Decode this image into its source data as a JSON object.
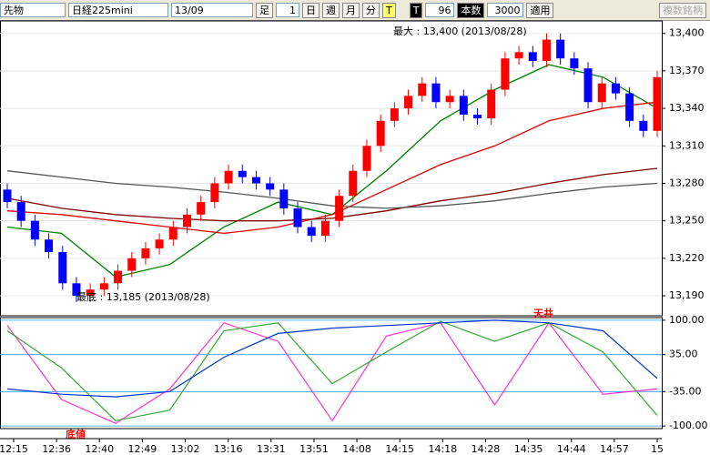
{
  "toolbar": {
    "market": "先物",
    "symbol": "日経225mini",
    "contract": "13/09",
    "bar_label": "足",
    "bar_value": 1,
    "periods": [
      "日",
      "週",
      "月",
      "分"
    ],
    "tick": "T",
    "t_label": "T",
    "count": 96,
    "count_label": "本数",
    "bars": 3000,
    "apply": "適用",
    "multi": "複数銘柄"
  },
  "chart_data": [
    {
      "type": "candlestick",
      "up_color": "#ff0000",
      "down_color": "#0000ff",
      "open": [
        13275,
        13265,
        13250,
        13235,
        13225,
        13200,
        13190,
        13195,
        13200,
        13210,
        13220,
        13228,
        13235,
        13245,
        13255,
        13265,
        13280,
        13290,
        13285,
        13280,
        13275,
        13260,
        13245,
        13238,
        13250,
        13270,
        13290,
        13310,
        13330,
        13340,
        13350,
        13360,
        13345,
        13350,
        13335,
        13332,
        13355,
        13380,
        13385,
        13378,
        13395,
        13380,
        13372,
        13345,
        13360,
        13352,
        13330,
        13322
      ],
      "high": [
        13280,
        13270,
        13255,
        13240,
        13230,
        13205,
        13200,
        13205,
        13215,
        13225,
        13233,
        13240,
        13250,
        13260,
        13270,
        13285,
        13295,
        13295,
        13290,
        13285,
        13280,
        13265,
        13250,
        13255,
        13275,
        13295,
        13315,
        13335,
        13345,
        13355,
        13365,
        13365,
        13355,
        13355,
        13340,
        13360,
        13385,
        13390,
        13390,
        13400,
        13400,
        13385,
        13377,
        13365,
        13365,
        13357,
        13335,
        13370
      ],
      "low": [
        13260,
        13245,
        13230,
        13220,
        13195,
        13185,
        13185,
        13190,
        13195,
        13205,
        13215,
        13223,
        13230,
        13240,
        13250,
        13260,
        13275,
        13280,
        13275,
        13270,
        13255,
        13240,
        13233,
        13233,
        13245,
        13265,
        13285,
        13305,
        13325,
        13335,
        13345,
        13340,
        13340,
        13330,
        13327,
        13327,
        13350,
        13375,
        13373,
        13373,
        13375,
        13367,
        13340,
        13340,
        13347,
        13325,
        13317,
        13317
      ],
      "close": [
        13265,
        13250,
        13235,
        13225,
        13200,
        13190,
        13195,
        13200,
        13210,
        13220,
        13228,
        13235,
        13245,
        13255,
        13265,
        13280,
        13290,
        13285,
        13280,
        13275,
        13260,
        13245,
        13238,
        13250,
        13270,
        13290,
        13310,
        13330,
        13340,
        13350,
        13360,
        13345,
        13350,
        13335,
        13332,
        13355,
        13380,
        13385,
        13378,
        13395,
        13380,
        13372,
        13345,
        13360,
        13352,
        13330,
        13322,
        13365
      ],
      "series": [
        {
          "color": "#008000",
          "values": [
            13245,
            13240,
            13205,
            13215,
            13245,
            13265,
            13255,
            13290,
            13330,
            13355,
            13375,
            13365,
            13340
          ]
        },
        {
          "color": "#e00000",
          "values": [
            13258,
            13255,
            13250,
            13245,
            13240,
            13245,
            13255,
            13275,
            13295,
            13310,
            13330,
            13340,
            13345
          ]
        },
        {
          "color": "#800000",
          "values": [
            13268,
            13260,
            13255,
            13252,
            13250,
            13250,
            13252,
            13258,
            13266,
            13272,
            13280,
            13287,
            13292
          ]
        },
        {
          "color": "#555555",
          "values": [
            13290,
            13285,
            13280,
            13277,
            13273,
            13268,
            13262,
            13260,
            13262,
            13266,
            13272,
            13277,
            13280
          ]
        }
      ],
      "ylim": [
        13174,
        13410
      ],
      "yticks": [
        {
          "value": 13190,
          "label": "13,190"
        },
        {
          "value": 13220,
          "label": "13,220"
        },
        {
          "value": 13250,
          "label": "13,250"
        },
        {
          "value": 13280,
          "label": "13,280"
        },
        {
          "value": 13310,
          "label": "13,310"
        },
        {
          "value": 13340,
          "label": "13,340"
        },
        {
          "value": 13370,
          "label": "13,370"
        },
        {
          "value": 13400,
          "label": "13,400"
        }
      ],
      "annotations": [
        "最大 : 13,400 (2013/08/28)",
        "最底 : 13,185 (2013/08/28)"
      ]
    },
    {
      "type": "line",
      "series": [
        {
          "color": "#ff33cc",
          "values": [
            90,
            -50,
            -95,
            -30,
            95,
            60,
            -90,
            70,
            95,
            -60,
            95,
            -40,
            -30
          ]
        },
        {
          "color": "#33aa33",
          "values": [
            80,
            10,
            -90,
            -70,
            80,
            95,
            -20,
            40,
            98,
            60,
            95,
            40,
            -80
          ]
        },
        {
          "color": "#0033cc",
          "values": [
            -30,
            -40,
            -45,
            -35,
            30,
            75,
            85,
            90,
            95,
            100,
            95,
            80,
            -10
          ]
        }
      ],
      "ylim": [
        -105,
        105
      ],
      "yticks": [
        {
          "value": 100,
          "label": "100.00"
        },
        {
          "value": 35,
          "label": "35.00"
        },
        {
          "value": -35,
          "label": "-35.00"
        },
        {
          "value": -100,
          "label": "-100.00"
        }
      ],
      "annotations": [
        "天井",
        "底値"
      ],
      "xticks": [
        "12:15",
        "12:36",
        "12:40",
        "12:49",
        "13:02",
        "13:16",
        "13:31",
        "13:51",
        "14:08",
        "14:15",
        "14:18",
        "14:28",
        "14:35",
        "14:44",
        "14:57",
        "15"
      ]
    }
  ]
}
